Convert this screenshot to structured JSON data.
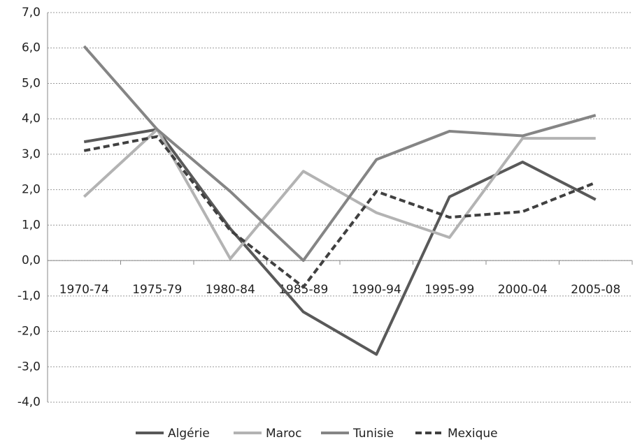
{
  "chart_data": {
    "type": "line",
    "categories": [
      "1970-74",
      "1975-79",
      "1980-84",
      "1985-89",
      "1990-94",
      "1995-99",
      "2000-04",
      "2005-08"
    ],
    "series": [
      {
        "name": "Algérie",
        "color": "#595959",
        "values": [
          3.35,
          3.7,
          0.9,
          -1.45,
          -2.65,
          1.8,
          2.78,
          1.72
        ]
      },
      {
        "name": "Maroc",
        "color": "#b3b3b3",
        "values": [
          1.8,
          3.7,
          0.05,
          2.52,
          1.35,
          0.65,
          3.45,
          3.45
        ]
      },
      {
        "name": "Tunisie",
        "color": "#858585",
        "values": [
          6.05,
          3.7,
          1.95,
          0.0,
          2.85,
          3.65,
          3.52,
          4.1
        ]
      },
      {
        "name": "Mexique",
        "color": "#404040",
        "dashed": true,
        "values": [
          3.1,
          3.5,
          0.85,
          -0.75,
          1.95,
          1.22,
          1.38,
          2.2
        ]
      }
    ],
    "ylim": [
      -4,
      7
    ],
    "yticks": [
      {
        "value": -4,
        "label": "-4,0"
      },
      {
        "value": -3,
        "label": "-3,0"
      },
      {
        "value": -2,
        "label": "-2,0"
      },
      {
        "value": -1,
        "label": "-1,0"
      },
      {
        "value": 0,
        "label": "0,0"
      },
      {
        "value": 1,
        "label": "1,0"
      },
      {
        "value": 2,
        "label": "2,0"
      },
      {
        "value": 3,
        "label": "3,0"
      },
      {
        "value": 4,
        "label": "4,0"
      },
      {
        "value": 5,
        "label": "5,0"
      },
      {
        "value": 6,
        "label": "6,0"
      },
      {
        "value": 7,
        "label": "7,0"
      }
    ],
    "grid": true,
    "legend": "bottom"
  }
}
